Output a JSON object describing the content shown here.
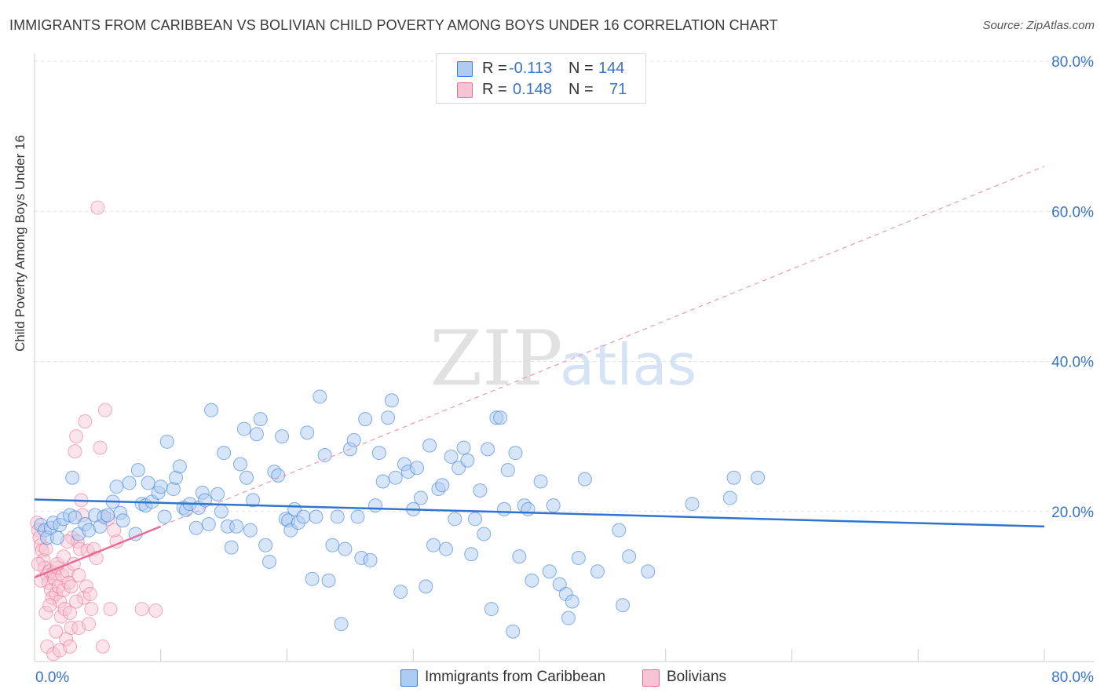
{
  "title": "IMMIGRANTS FROM CARIBBEAN VS BOLIVIAN CHILD POVERTY AMONG BOYS UNDER 16 CORRELATION CHART",
  "source": "Source: ZipAtlas.com",
  "watermark": {
    "zip": "ZIP",
    "atlas": "atlas"
  },
  "legend_top": {
    "rows": [
      {
        "r_label": "R =",
        "r_value": "-0.113",
        "n_label": "N =",
        "n_value": "144",
        "color": "#aecbf2"
      },
      {
        "r_label": "R =",
        "r_value": "0.148",
        "n_label": "N =",
        "n_value": "71",
        "color": "#f8c3d3"
      }
    ]
  },
  "legend_bottom": [
    {
      "label": "Immigrants from Caribbean",
      "color": "#aecbf2"
    },
    {
      "label": "Bolivians",
      "color": "#f8c3d3"
    }
  ],
  "chart_data": {
    "type": "scatter",
    "title": "IMMIGRANTS FROM CARIBBEAN VS BOLIVIAN CHILD POVERTY AMONG BOYS UNDER 16 CORRELATION CHART",
    "xlabel": "",
    "ylabel": "Child Poverty Among Boys Under 16",
    "xlim": [
      0,
      80
    ],
    "ylim": [
      0,
      80
    ],
    "x_tick_labels": [
      "0.0%",
      "80.0%"
    ],
    "y_tick_labels": [
      "20.0%",
      "40.0%",
      "60.0%",
      "80.0%"
    ],
    "y_ticks": [
      20,
      40,
      60,
      80
    ],
    "grid": true,
    "colors": {
      "caribbean": "#3b7dd8",
      "caribbean_fill": "#aecbf2",
      "bolivian": "#e86b96",
      "bolivian_fill": "#f8c3d3",
      "tick_text": "#3a73c8"
    },
    "series": [
      {
        "name": "Immigrants from Caribbean",
        "trend": {
          "x": [
            0,
            80
          ],
          "y": [
            21.6,
            18.0
          ]
        },
        "points": [
          [
            0.5,
            18.2
          ],
          [
            0.8,
            17.5
          ],
          [
            1.0,
            16.5
          ],
          [
            1.3,
            17.8
          ],
          [
            1.5,
            18.5
          ],
          [
            1.8,
            16.5
          ],
          [
            2.0,
            18.2
          ],
          [
            2.3,
            19.0
          ],
          [
            2.8,
            19.5
          ],
          [
            3.0,
            24.5
          ],
          [
            3.2,
            19.2
          ],
          [
            3.5,
            17.0
          ],
          [
            4.0,
            18.3
          ],
          [
            4.3,
            17.5
          ],
          [
            4.8,
            19.5
          ],
          [
            5.2,
            18.0
          ],
          [
            5.5,
            19.3
          ],
          [
            5.8,
            19.5
          ],
          [
            6.2,
            21.3
          ],
          [
            6.5,
            23.3
          ],
          [
            6.8,
            19.8
          ],
          [
            7.0,
            18.8
          ],
          [
            7.5,
            23.8
          ],
          [
            8.0,
            17.0
          ],
          [
            8.2,
            25.5
          ],
          [
            8.5,
            21.0
          ],
          [
            8.8,
            20.8
          ],
          [
            9.0,
            23.8
          ],
          [
            9.3,
            21.3
          ],
          [
            9.8,
            22.5
          ],
          [
            10.0,
            23.3
          ],
          [
            10.3,
            19.3
          ],
          [
            10.5,
            29.3
          ],
          [
            11.0,
            23.0
          ],
          [
            11.2,
            24.5
          ],
          [
            11.5,
            26.0
          ],
          [
            11.8,
            20.5
          ],
          [
            12.0,
            20.2
          ],
          [
            12.3,
            21.0
          ],
          [
            12.8,
            17.8
          ],
          [
            13.0,
            20.5
          ],
          [
            13.3,
            22.5
          ],
          [
            13.5,
            21.5
          ],
          [
            13.8,
            18.3
          ],
          [
            14.0,
            33.5
          ],
          [
            14.5,
            22.3
          ],
          [
            14.8,
            20.0
          ],
          [
            15.0,
            27.8
          ],
          [
            15.3,
            18.0
          ],
          [
            15.6,
            15.2
          ],
          [
            16.0,
            18.0
          ],
          [
            16.3,
            26.3
          ],
          [
            16.6,
            31.0
          ],
          [
            16.8,
            24.5
          ],
          [
            17.1,
            17.5
          ],
          [
            17.3,
            21.5
          ],
          [
            17.6,
            30.3
          ],
          [
            17.9,
            32.3
          ],
          [
            18.3,
            15.5
          ],
          [
            18.6,
            13.3
          ],
          [
            19.0,
            25.3
          ],
          [
            19.3,
            24.8
          ],
          [
            19.6,
            30.0
          ],
          [
            19.9,
            19.0
          ],
          [
            20.1,
            18.8
          ],
          [
            20.3,
            17.5
          ],
          [
            20.6,
            20.3
          ],
          [
            20.9,
            18.5
          ],
          [
            21.3,
            19.3
          ],
          [
            21.6,
            30.5
          ],
          [
            22.0,
            11.0
          ],
          [
            22.3,
            19.3
          ],
          [
            22.6,
            35.3
          ],
          [
            23.0,
            27.5
          ],
          [
            23.3,
            10.8
          ],
          [
            23.6,
            15.5
          ],
          [
            24.0,
            19.3
          ],
          [
            24.3,
            5.0
          ],
          [
            24.6,
            15.0
          ],
          [
            25.0,
            28.3
          ],
          [
            25.3,
            29.5
          ],
          [
            25.6,
            19.3
          ],
          [
            25.9,
            13.8
          ],
          [
            26.2,
            32.3
          ],
          [
            26.6,
            13.5
          ],
          [
            27.0,
            20.8
          ],
          [
            27.3,
            27.8
          ],
          [
            27.6,
            24.0
          ],
          [
            28.0,
            32.5
          ],
          [
            28.3,
            34.8
          ],
          [
            28.6,
            24.5
          ],
          [
            29.0,
            9.3
          ],
          [
            29.3,
            26.3
          ],
          [
            29.6,
            25.3
          ],
          [
            30.0,
            20.3
          ],
          [
            30.3,
            25.8
          ],
          [
            30.6,
            21.8
          ],
          [
            31.0,
            10.0
          ],
          [
            31.3,
            28.8
          ],
          [
            31.6,
            15.5
          ],
          [
            32.0,
            23.0
          ],
          [
            32.3,
            23.5
          ],
          [
            32.6,
            15.0
          ],
          [
            33.0,
            27.3
          ],
          [
            33.3,
            19.0
          ],
          [
            33.6,
            25.8
          ],
          [
            34.0,
            28.5
          ],
          [
            34.3,
            26.8
          ],
          [
            34.6,
            14.3
          ],
          [
            34.9,
            19.0
          ],
          [
            35.3,
            22.8
          ],
          [
            35.6,
            17.0
          ],
          [
            35.9,
            28.3
          ],
          [
            36.2,
            7.0
          ],
          [
            36.6,
            32.5
          ],
          [
            36.9,
            32.5
          ],
          [
            37.2,
            20.3
          ],
          [
            37.5,
            25.5
          ],
          [
            37.9,
            4.0
          ],
          [
            38.1,
            27.8
          ],
          [
            38.4,
            14.0
          ],
          [
            38.8,
            20.8
          ],
          [
            39.1,
            20.3
          ],
          [
            39.4,
            10.8
          ],
          [
            40.1,
            24.0
          ],
          [
            40.8,
            12.0
          ],
          [
            41.1,
            20.8
          ],
          [
            41.6,
            10.3
          ],
          [
            42.1,
            9.0
          ],
          [
            42.3,
            5.8
          ],
          [
            42.6,
            8.0
          ],
          [
            43.1,
            13.8
          ],
          [
            43.6,
            24.3
          ],
          [
            44.6,
            12.0
          ],
          [
            46.3,
            17.5
          ],
          [
            46.6,
            7.5
          ],
          [
            47.1,
            14.0
          ],
          [
            48.6,
            12.0
          ],
          [
            52.1,
            21.0
          ],
          [
            55.1,
            21.8
          ],
          [
            55.4,
            24.5
          ],
          [
            57.3,
            24.5
          ]
        ]
      },
      {
        "name": "Bolivians",
        "trend": {
          "x": [
            0,
            10
          ],
          "y": [
            11.2,
            18.0
          ]
        },
        "trend_extended": {
          "x": [
            0,
            80
          ],
          "y": [
            11.2,
            66.0
          ]
        },
        "points": [
          [
            0.2,
            18.5
          ],
          [
            0.3,
            17.5
          ],
          [
            0.4,
            16.5
          ],
          [
            0.5,
            15.5
          ],
          [
            0.6,
            14.8
          ],
          [
            0.7,
            13.5
          ],
          [
            0.8,
            12.5
          ],
          [
            0.9,
            15.0
          ],
          [
            1.0,
            11.5
          ],
          [
            1.1,
            10.5
          ],
          [
            1.2,
            12.0
          ],
          [
            1.3,
            9.5
          ],
          [
            1.4,
            8.5
          ],
          [
            1.5,
            11.8
          ],
          [
            1.6,
            11.0
          ],
          [
            1.7,
            9.0
          ],
          [
            1.8,
            12.5
          ],
          [
            1.9,
            10.0
          ],
          [
            2.0,
            8.0
          ],
          [
            2.1,
            6.0
          ],
          [
            2.2,
            11.5
          ],
          [
            2.3,
            9.5
          ],
          [
            2.4,
            7.0
          ],
          [
            2.5,
            3.0
          ],
          [
            2.6,
            12.0
          ],
          [
            2.7,
            10.5
          ],
          [
            2.8,
            6.5
          ],
          [
            2.9,
            4.5
          ],
          [
            3.0,
            16.5
          ],
          [
            3.1,
            13.0
          ],
          [
            3.2,
            28.0
          ],
          [
            3.3,
            30.0
          ],
          [
            3.4,
            16.0
          ],
          [
            3.5,
            4.5
          ],
          [
            3.6,
            15.0
          ],
          [
            3.7,
            21.5
          ],
          [
            3.8,
            19.5
          ],
          [
            3.9,
            8.5
          ],
          [
            4.0,
            32.0
          ],
          [
            4.1,
            10.0
          ],
          [
            4.2,
            14.8
          ],
          [
            4.3,
            5.0
          ],
          [
            4.5,
            7.0
          ],
          [
            4.7,
            15.0
          ],
          [
            4.9,
            13.8
          ],
          [
            5.0,
            60.5
          ],
          [
            5.2,
            28.5
          ],
          [
            5.4,
            2.0
          ],
          [
            5.6,
            33.5
          ],
          [
            5.8,
            19.0
          ],
          [
            6.0,
            7.0
          ],
          [
            6.5,
            16.0
          ],
          [
            8.5,
            7.0
          ],
          [
            9.6,
            6.8
          ],
          [
            1.0,
            2.0
          ],
          [
            1.5,
            1.0
          ],
          [
            2.0,
            1.5
          ],
          [
            2.8,
            2.0
          ],
          [
            0.5,
            10.8
          ],
          [
            1.8,
            13.0
          ],
          [
            2.3,
            14.0
          ],
          [
            2.6,
            16.0
          ],
          [
            0.9,
            6.5
          ],
          [
            1.7,
            4.0
          ],
          [
            3.5,
            11.5
          ],
          [
            4.4,
            9.0
          ],
          [
            0.3,
            13.0
          ],
          [
            2.9,
            10.0
          ],
          [
            3.3,
            8.0
          ],
          [
            1.2,
            7.5
          ],
          [
            6.3,
            17.5
          ]
        ]
      }
    ]
  }
}
